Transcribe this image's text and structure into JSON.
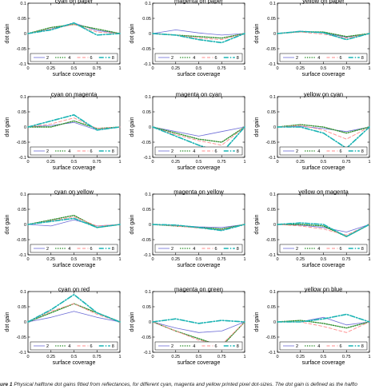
{
  "caption": {
    "figure_label": "ure 1",
    "text": "Physical halftone dot gains fitted from reflectances, for different cyan, magenta and yellow printed pixel dot-sizes. The dot gain is defined as the halfto"
  },
  "colors": {
    "axis": "#000000",
    "series": [
      "#6b6bd6",
      "#2f8f2f",
      "#ff8a8a",
      "#19b3b3"
    ]
  },
  "chart_data": [
    {
      "type": "line",
      "title": "cyan on paper",
      "xlabel": "surface coverage",
      "ylabel": "dot gain",
      "xlim": [
        0,
        1
      ],
      "ylim": [
        -0.1,
        0.1
      ],
      "x": [
        0,
        0.25,
        0.5,
        0.75,
        1
      ],
      "xticks": [
        "0",
        "0.25",
        "0.5",
        "0.75",
        "1"
      ],
      "yticks": [
        "0.1",
        "0.05",
        "0",
        "-0.05",
        "-0.1"
      ],
      "legend": [
        "2",
        "4",
        "6",
        "8"
      ],
      "legend_position": "bottom",
      "series": [
        {
          "name": "2",
          "values": [
            0,
            0.015,
            0.035,
            0.01,
            0
          ]
        },
        {
          "name": "4",
          "values": [
            0,
            0.02,
            0.03,
            0.015,
            0
          ]
        },
        {
          "name": "6",
          "values": [
            0,
            0.015,
            0.03,
            0.005,
            0
          ]
        },
        {
          "name": "8",
          "values": [
            0,
            0.012,
            0.035,
            -0.005,
            0
          ]
        }
      ]
    },
    {
      "type": "line",
      "title": "magenta on paper",
      "xlabel": "surface coverage",
      "ylabel": "dot gain",
      "xlim": [
        0,
        1
      ],
      "ylim": [
        -0.1,
        0.1
      ],
      "x": [
        0,
        0.25,
        0.5,
        0.75,
        1
      ],
      "xticks": [
        "0",
        "0.25",
        "0.5",
        "0.75",
        "1"
      ],
      "yticks": [
        "0.1",
        "0.05",
        "0",
        "-0.05",
        "-0.1"
      ],
      "legend": [
        "2",
        "4",
        "6",
        "8"
      ],
      "legend_position": "bottom",
      "series": [
        {
          "name": "2",
          "values": [
            0,
            0.012,
            0.002,
            -0.005,
            0
          ]
        },
        {
          "name": "4",
          "values": [
            0,
            -0.005,
            -0.01,
            -0.015,
            0
          ]
        },
        {
          "name": "6",
          "values": [
            0,
            -0.005,
            -0.015,
            -0.02,
            0
          ]
        },
        {
          "name": "8",
          "values": [
            0,
            -0.005,
            -0.02,
            -0.03,
            0
          ]
        }
      ]
    },
    {
      "type": "line",
      "title": "yellow on paper",
      "xlabel": "surface coverage",
      "ylabel": "dot gain",
      "xlim": [
        0,
        1
      ],
      "ylim": [
        -0.1,
        0.1
      ],
      "x": [
        0,
        0.25,
        0.5,
        0.75,
        1
      ],
      "xticks": [
        "0",
        "0.25",
        "0.5",
        "0.75",
        "1"
      ],
      "yticks": [
        "0.1",
        "0.05",
        "0",
        "-0.05",
        "-0.1"
      ],
      "legend": [
        "2",
        "4",
        "6",
        "8"
      ],
      "legend_position": "bottom",
      "series": [
        {
          "name": "2",
          "values": [
            0,
            0.008,
            0.002,
            -0.012,
            0
          ]
        },
        {
          "name": "4",
          "values": [
            0,
            0.006,
            0.005,
            -0.01,
            0
          ]
        },
        {
          "name": "6",
          "values": [
            0,
            0.005,
            -0.002,
            -0.015,
            0
          ]
        },
        {
          "name": "8",
          "values": [
            0,
            0.007,
            0.003,
            -0.02,
            0
          ]
        }
      ]
    },
    {
      "type": "line",
      "title": "cyan on magenta",
      "xlabel": "surface coverage",
      "ylabel": "dot gain",
      "xlim": [
        0,
        1
      ],
      "ylim": [
        -0.1,
        0.1
      ],
      "x": [
        0,
        0.25,
        0.5,
        0.75,
        1
      ],
      "xticks": [
        "0",
        "0.25",
        "0.5",
        "0.75",
        "1"
      ],
      "yticks": [
        "0.1",
        "0.05",
        "0",
        "-0.05",
        "-0.1"
      ],
      "legend": [
        "2",
        "4",
        "6",
        "8"
      ],
      "legend_position": "bottom",
      "series": [
        {
          "name": "2",
          "values": [
            0,
            0.005,
            0.015,
            -0.01,
            0
          ]
        },
        {
          "name": "4",
          "values": [
            0,
            0.0,
            0.02,
            -0.005,
            0
          ]
        },
        {
          "name": "6",
          "values": [
            0,
            0.01,
            0.03,
            -0.005,
            0
          ]
        },
        {
          "name": "8",
          "values": [
            0,
            0.02,
            0.04,
            -0.01,
            0
          ]
        }
      ]
    },
    {
      "type": "line",
      "title": "magenta on cyan",
      "xlabel": "surface coverage",
      "ylabel": "dot gain",
      "xlim": [
        0,
        1
      ],
      "ylim": [
        -0.1,
        0.1
      ],
      "x": [
        0,
        0.25,
        0.5,
        0.75,
        1
      ],
      "xticks": [
        "0",
        "0.25",
        "0.5",
        "0.75",
        "1"
      ],
      "yticks": [
        "0.1",
        "0.05",
        "0",
        "-0.05",
        "-0.1"
      ],
      "legend": [
        "2",
        "4",
        "6",
        "8"
      ],
      "legend_position": "bottom",
      "series": [
        {
          "name": "2",
          "values": [
            0,
            -0.015,
            -0.03,
            -0.015,
            0
          ]
        },
        {
          "name": "4",
          "values": [
            0,
            -0.02,
            -0.04,
            -0.05,
            0
          ]
        },
        {
          "name": "6",
          "values": [
            0,
            -0.025,
            -0.045,
            -0.06,
            0
          ]
        },
        {
          "name": "8",
          "values": [
            0,
            -0.03,
            -0.06,
            -0.085,
            0
          ]
        }
      ]
    },
    {
      "type": "line",
      "title": "yellow on cyan",
      "xlabel": "surface coverage",
      "ylabel": "dot gain",
      "xlim": [
        0,
        1
      ],
      "ylim": [
        -0.1,
        0.1
      ],
      "x": [
        0,
        0.25,
        0.5,
        0.75,
        1
      ],
      "xticks": [
        "0",
        "0.25",
        "0.5",
        "0.75",
        "1"
      ],
      "yticks": [
        "0.1",
        "0.05",
        "0",
        "-0.05",
        "-0.1"
      ],
      "legend": [
        "2",
        "4",
        "6",
        "8"
      ],
      "legend_position": "bottom",
      "series": [
        {
          "name": "2",
          "values": [
            0,
            0.002,
            -0.005,
            -0.015,
            0
          ]
        },
        {
          "name": "4",
          "values": [
            0,
            0.008,
            0.0,
            -0.02,
            0
          ]
        },
        {
          "name": "6",
          "values": [
            0,
            0.005,
            -0.01,
            -0.04,
            0
          ]
        },
        {
          "name": "8",
          "values": [
            0,
            0.0,
            -0.02,
            -0.07,
            0
          ]
        }
      ]
    },
    {
      "type": "line",
      "title": "cyan on yellow",
      "xlabel": "surface coverage",
      "ylabel": "dot gain",
      "xlim": [
        0,
        1
      ],
      "ylim": [
        -0.1,
        0.1
      ],
      "x": [
        0,
        0.25,
        0.5,
        0.75,
        1
      ],
      "xticks": [
        "0",
        "0.25",
        "0.5",
        "0.75",
        "1"
      ],
      "yticks": [
        "0.1",
        "0.05",
        "0",
        "-0.05",
        "-0.1"
      ],
      "legend": [
        "2",
        "4",
        "6",
        "8"
      ],
      "legend_position": "bottom",
      "series": [
        {
          "name": "2",
          "values": [
            0,
            -0.005,
            0.015,
            -0.005,
            0
          ]
        },
        {
          "name": "4",
          "values": [
            0,
            0.015,
            0.03,
            -0.01,
            0
          ]
        },
        {
          "name": "6",
          "values": [
            0,
            0.012,
            0.025,
            -0.005,
            0
          ]
        },
        {
          "name": "8",
          "values": [
            0,
            0.01,
            0.02,
            -0.01,
            0
          ]
        }
      ]
    },
    {
      "type": "line",
      "title": "magenta on yellow",
      "xlabel": "surface coverage",
      "ylabel": "dot gain",
      "xlim": [
        0,
        1
      ],
      "ylim": [
        -0.1,
        0.1
      ],
      "x": [
        0,
        0.25,
        0.5,
        0.75,
        1
      ],
      "xticks": [
        "0",
        "0.25",
        "0.5",
        "0.75",
        "1"
      ],
      "yticks": [
        "0.1",
        "0.05",
        "0",
        "-0.05",
        "-0.1"
      ],
      "legend": [
        "2",
        "4",
        "6",
        "8"
      ],
      "legend_position": "bottom",
      "series": [
        {
          "name": "2",
          "values": [
            0,
            -0.003,
            -0.008,
            -0.01,
            0
          ]
        },
        {
          "name": "4",
          "values": [
            0,
            -0.005,
            -0.01,
            -0.015,
            0
          ]
        },
        {
          "name": "6",
          "values": [
            0,
            -0.005,
            -0.012,
            -0.018,
            0
          ]
        },
        {
          "name": "8",
          "values": [
            0,
            -0.002,
            -0.01,
            -0.02,
            0
          ]
        }
      ]
    },
    {
      "type": "line",
      "title": "yellow on magenta",
      "xlabel": "surface coverage",
      "ylabel": "dot gain",
      "xlim": [
        0,
        1
      ],
      "ylim": [
        -0.1,
        0.1
      ],
      "x": [
        0,
        0.25,
        0.5,
        0.75,
        1
      ],
      "xticks": [
        "0",
        "0.25",
        "0.5",
        "0.75",
        "1"
      ],
      "yticks": [
        "0.1",
        "0.05",
        "0",
        "-0.05",
        "-0.1"
      ],
      "legend": [
        "2",
        "4",
        "6",
        "8"
      ],
      "legend_position": "bottom",
      "series": [
        {
          "name": "2",
          "values": [
            0,
            -0.002,
            -0.01,
            -0.025,
            0
          ]
        },
        {
          "name": "4",
          "values": [
            0,
            0.0,
            -0.005,
            -0.04,
            0
          ]
        },
        {
          "name": "6",
          "values": [
            0,
            -0.005,
            -0.015,
            -0.035,
            0
          ]
        },
        {
          "name": "8",
          "values": [
            0,
            0.005,
            0.0,
            -0.04,
            0
          ]
        }
      ]
    },
    {
      "type": "line",
      "title": "cyan on red",
      "xlabel": "surface coverage",
      "ylabel": "dot gain",
      "xlim": [
        0,
        1
      ],
      "ylim": [
        -0.1,
        0.1
      ],
      "x": [
        0,
        0.25,
        0.5,
        0.75,
        1
      ],
      "xticks": [
        "0",
        "0.25",
        "0.5",
        "0.75",
        "1"
      ],
      "yticks": [
        "0.1",
        "0.05",
        "0",
        "-0.05",
        "-0.1"
      ],
      "legend": [
        "2",
        "4",
        "6",
        "8"
      ],
      "legend_position": "bottom",
      "series": [
        {
          "name": "2",
          "values": [
            0,
            0.015,
            0.035,
            0.015,
            0
          ]
        },
        {
          "name": "4",
          "values": [
            0,
            0.03,
            0.06,
            0.03,
            0
          ]
        },
        {
          "name": "6",
          "values": [
            0,
            0.035,
            0.06,
            0.025,
            0
          ]
        },
        {
          "name": "8",
          "values": [
            0,
            0.04,
            0.09,
            0.03,
            0
          ]
        }
      ]
    },
    {
      "type": "line",
      "title": "magenta on green",
      "xlabel": "surface coverage",
      "ylabel": "dot gain",
      "xlim": [
        0,
        1
      ],
      "ylim": [
        -0.1,
        0.1
      ],
      "x": [
        0,
        0.25,
        0.5,
        0.75,
        1
      ],
      "xticks": [
        "0",
        "0.25",
        "0.5",
        "0.75",
        "1"
      ],
      "yticks": [
        "0.1",
        "0.05",
        "0",
        "-0.05",
        "-0.1"
      ],
      "legend": [
        "2",
        "4",
        "6",
        "8"
      ],
      "legend_position": "bottom",
      "series": [
        {
          "name": "2",
          "values": [
            0,
            -0.02,
            -0.035,
            -0.03,
            0
          ]
        },
        {
          "name": "4",
          "values": [
            0,
            -0.03,
            -0.055,
            -0.08,
            0
          ]
        },
        {
          "name": "6",
          "values": [
            0,
            -0.03,
            -0.06,
            -0.075,
            0
          ]
        },
        {
          "name": "8",
          "values": [
            0,
            0.01,
            -0.005,
            0.005,
            0
          ]
        }
      ]
    },
    {
      "type": "line",
      "title": "yellow on blue",
      "xlabel": "surface coverage",
      "ylabel": "dot gain",
      "xlim": [
        0,
        1
      ],
      "ylim": [
        -0.1,
        0.1
      ],
      "x": [
        0,
        0.25,
        0.5,
        0.75,
        1
      ],
      "xticks": [
        "0",
        "0.25",
        "0.5",
        "0.75",
        "1"
      ],
      "yticks": [
        "0.1",
        "0.05",
        "0",
        "-0.05",
        "-0.1"
      ],
      "legend": [
        "2",
        "4",
        "6",
        "8"
      ],
      "legend_position": "bottom",
      "series": [
        {
          "name": "2",
          "values": [
            0,
            0.0,
            0.015,
            -0.01,
            0
          ]
        },
        {
          "name": "4",
          "values": [
            0,
            0.005,
            -0.005,
            -0.02,
            0
          ]
        },
        {
          "name": "6",
          "values": [
            0,
            0.0,
            -0.015,
            -0.035,
            0
          ]
        },
        {
          "name": "8",
          "values": [
            0,
            0.0,
            0.01,
            0.025,
            0
          ]
        }
      ]
    }
  ]
}
